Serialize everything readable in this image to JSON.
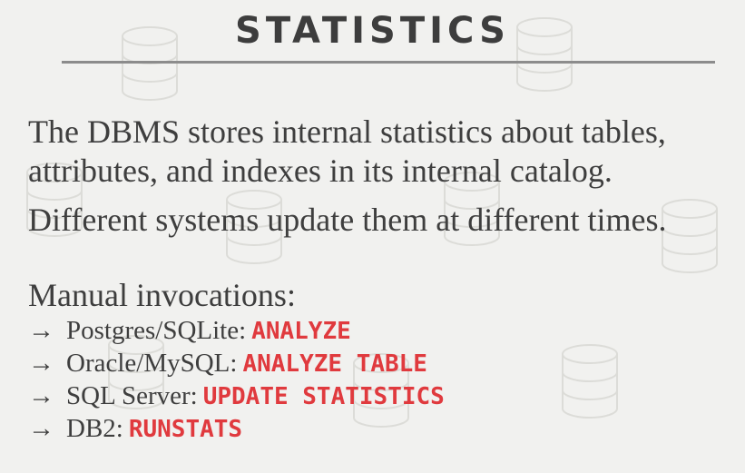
{
  "slide": {
    "title": "STATISTICS",
    "paragraph1": "The DBMS stores internal statistics about tables, attributes, and indexes in its internal catalog.",
    "paragraph2": "Different systems update them at different times.",
    "manual_heading": "Manual invocations:",
    "items": [
      {
        "arrow": "→",
        "system": "Postgres/SQLite:",
        "command": "ANALYZE"
      },
      {
        "arrow": "→",
        "system": "Oracle/MySQL:",
        "command": "ANALYZE TABLE"
      },
      {
        "arrow": "→",
        "system": "SQL Server:",
        "command": "UPDATE STATISTICS"
      },
      {
        "arrow": "→",
        "system": "DB2:",
        "command": "RUNSTATS"
      }
    ]
  },
  "colors": {
    "background": "#f1f1ef",
    "text": "#3e3e3e",
    "command": "#e03a3e",
    "rule": "#8c8c8c"
  }
}
